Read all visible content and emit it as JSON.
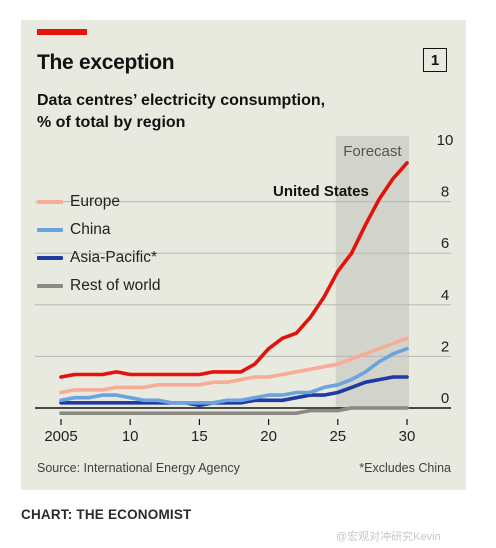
{
  "header": {
    "title": "The exception",
    "chart_number": "1",
    "subtitle_line1": "Data centres’ electricity consumption,",
    "subtitle_line2": "% of total by region"
  },
  "footer": {
    "source": "Source: International Energy Agency",
    "footnote": "*Excludes China",
    "credit": "CHART: THE ECONOMIST",
    "watermark": "@宏观对冲研究Kevin"
  },
  "colors": {
    "accent": "#e3120b",
    "background": "#e8e9df",
    "forecast_band": "#d2d3ca",
    "grid": "#b9bab3"
  },
  "chart_data": {
    "type": "line",
    "forecast_label": "Forecast",
    "forecast_range": [
      2025,
      2030
    ],
    "x": [
      2005,
      2006,
      2007,
      2008,
      2009,
      2010,
      2011,
      2012,
      2013,
      2014,
      2015,
      2016,
      2017,
      2018,
      2019,
      2020,
      2021,
      2022,
      2023,
      2024,
      2025,
      2026,
      2027,
      2028,
      2029,
      2030
    ],
    "xticks": [
      2005,
      2010,
      2015,
      2020,
      2025,
      2030
    ],
    "xtick_labels": [
      "2005",
      "10",
      "15",
      "20",
      "25",
      "30"
    ],
    "ylim": [
      0,
      10
    ],
    "yticks": [
      0,
      2,
      4,
      6,
      8,
      10
    ],
    "grid": true,
    "y_axis_side": "right",
    "legend_position": "top-left",
    "series": [
      {
        "name": "United States",
        "color": "#e3120b",
        "label_inline": true,
        "values": [
          1.2,
          1.3,
          1.3,
          1.3,
          1.4,
          1.3,
          1.3,
          1.3,
          1.3,
          1.3,
          1.3,
          1.4,
          1.4,
          1.4,
          1.7,
          2.3,
          2.7,
          2.9,
          3.5,
          4.3,
          5.3,
          6.0,
          7.1,
          8.1,
          8.9,
          9.5
        ]
      },
      {
        "name": "Europe",
        "color": "#f7ac96",
        "values": [
          0.6,
          0.7,
          0.7,
          0.7,
          0.8,
          0.8,
          0.8,
          0.9,
          0.9,
          0.9,
          0.9,
          1.0,
          1.0,
          1.1,
          1.2,
          1.2,
          1.3,
          1.4,
          1.5,
          1.6,
          1.7,
          1.9,
          2.1,
          2.3,
          2.5,
          2.7
        ]
      },
      {
        "name": "China",
        "color": "#6ba3df",
        "values": [
          0.3,
          0.4,
          0.4,
          0.5,
          0.5,
          0.4,
          0.3,
          0.3,
          0.2,
          0.2,
          0.2,
          0.2,
          0.3,
          0.3,
          0.4,
          0.5,
          0.5,
          0.6,
          0.6,
          0.8,
          0.9,
          1.1,
          1.4,
          1.8,
          2.1,
          2.3
        ]
      },
      {
        "name": "Asia-Pacific*",
        "color": "#1f3aa0",
        "values": [
          0.2,
          0.2,
          0.2,
          0.2,
          0.2,
          0.2,
          0.2,
          0.2,
          0.2,
          0.2,
          0.1,
          0.2,
          0.2,
          0.2,
          0.3,
          0.3,
          0.3,
          0.4,
          0.5,
          0.5,
          0.6,
          0.8,
          1.0,
          1.1,
          1.2,
          1.2
        ]
      },
      {
        "name": "Rest of world",
        "color": "#8a8a82",
        "values": [
          -0.2,
          -0.2,
          -0.2,
          -0.2,
          -0.2,
          -0.2,
          -0.2,
          -0.2,
          -0.2,
          -0.2,
          -0.2,
          -0.2,
          -0.2,
          -0.2,
          -0.2,
          -0.2,
          -0.2,
          -0.2,
          -0.1,
          -0.1,
          -0.1,
          0.0,
          0.0,
          0.0,
          0.0,
          0.0
        ]
      }
    ]
  }
}
